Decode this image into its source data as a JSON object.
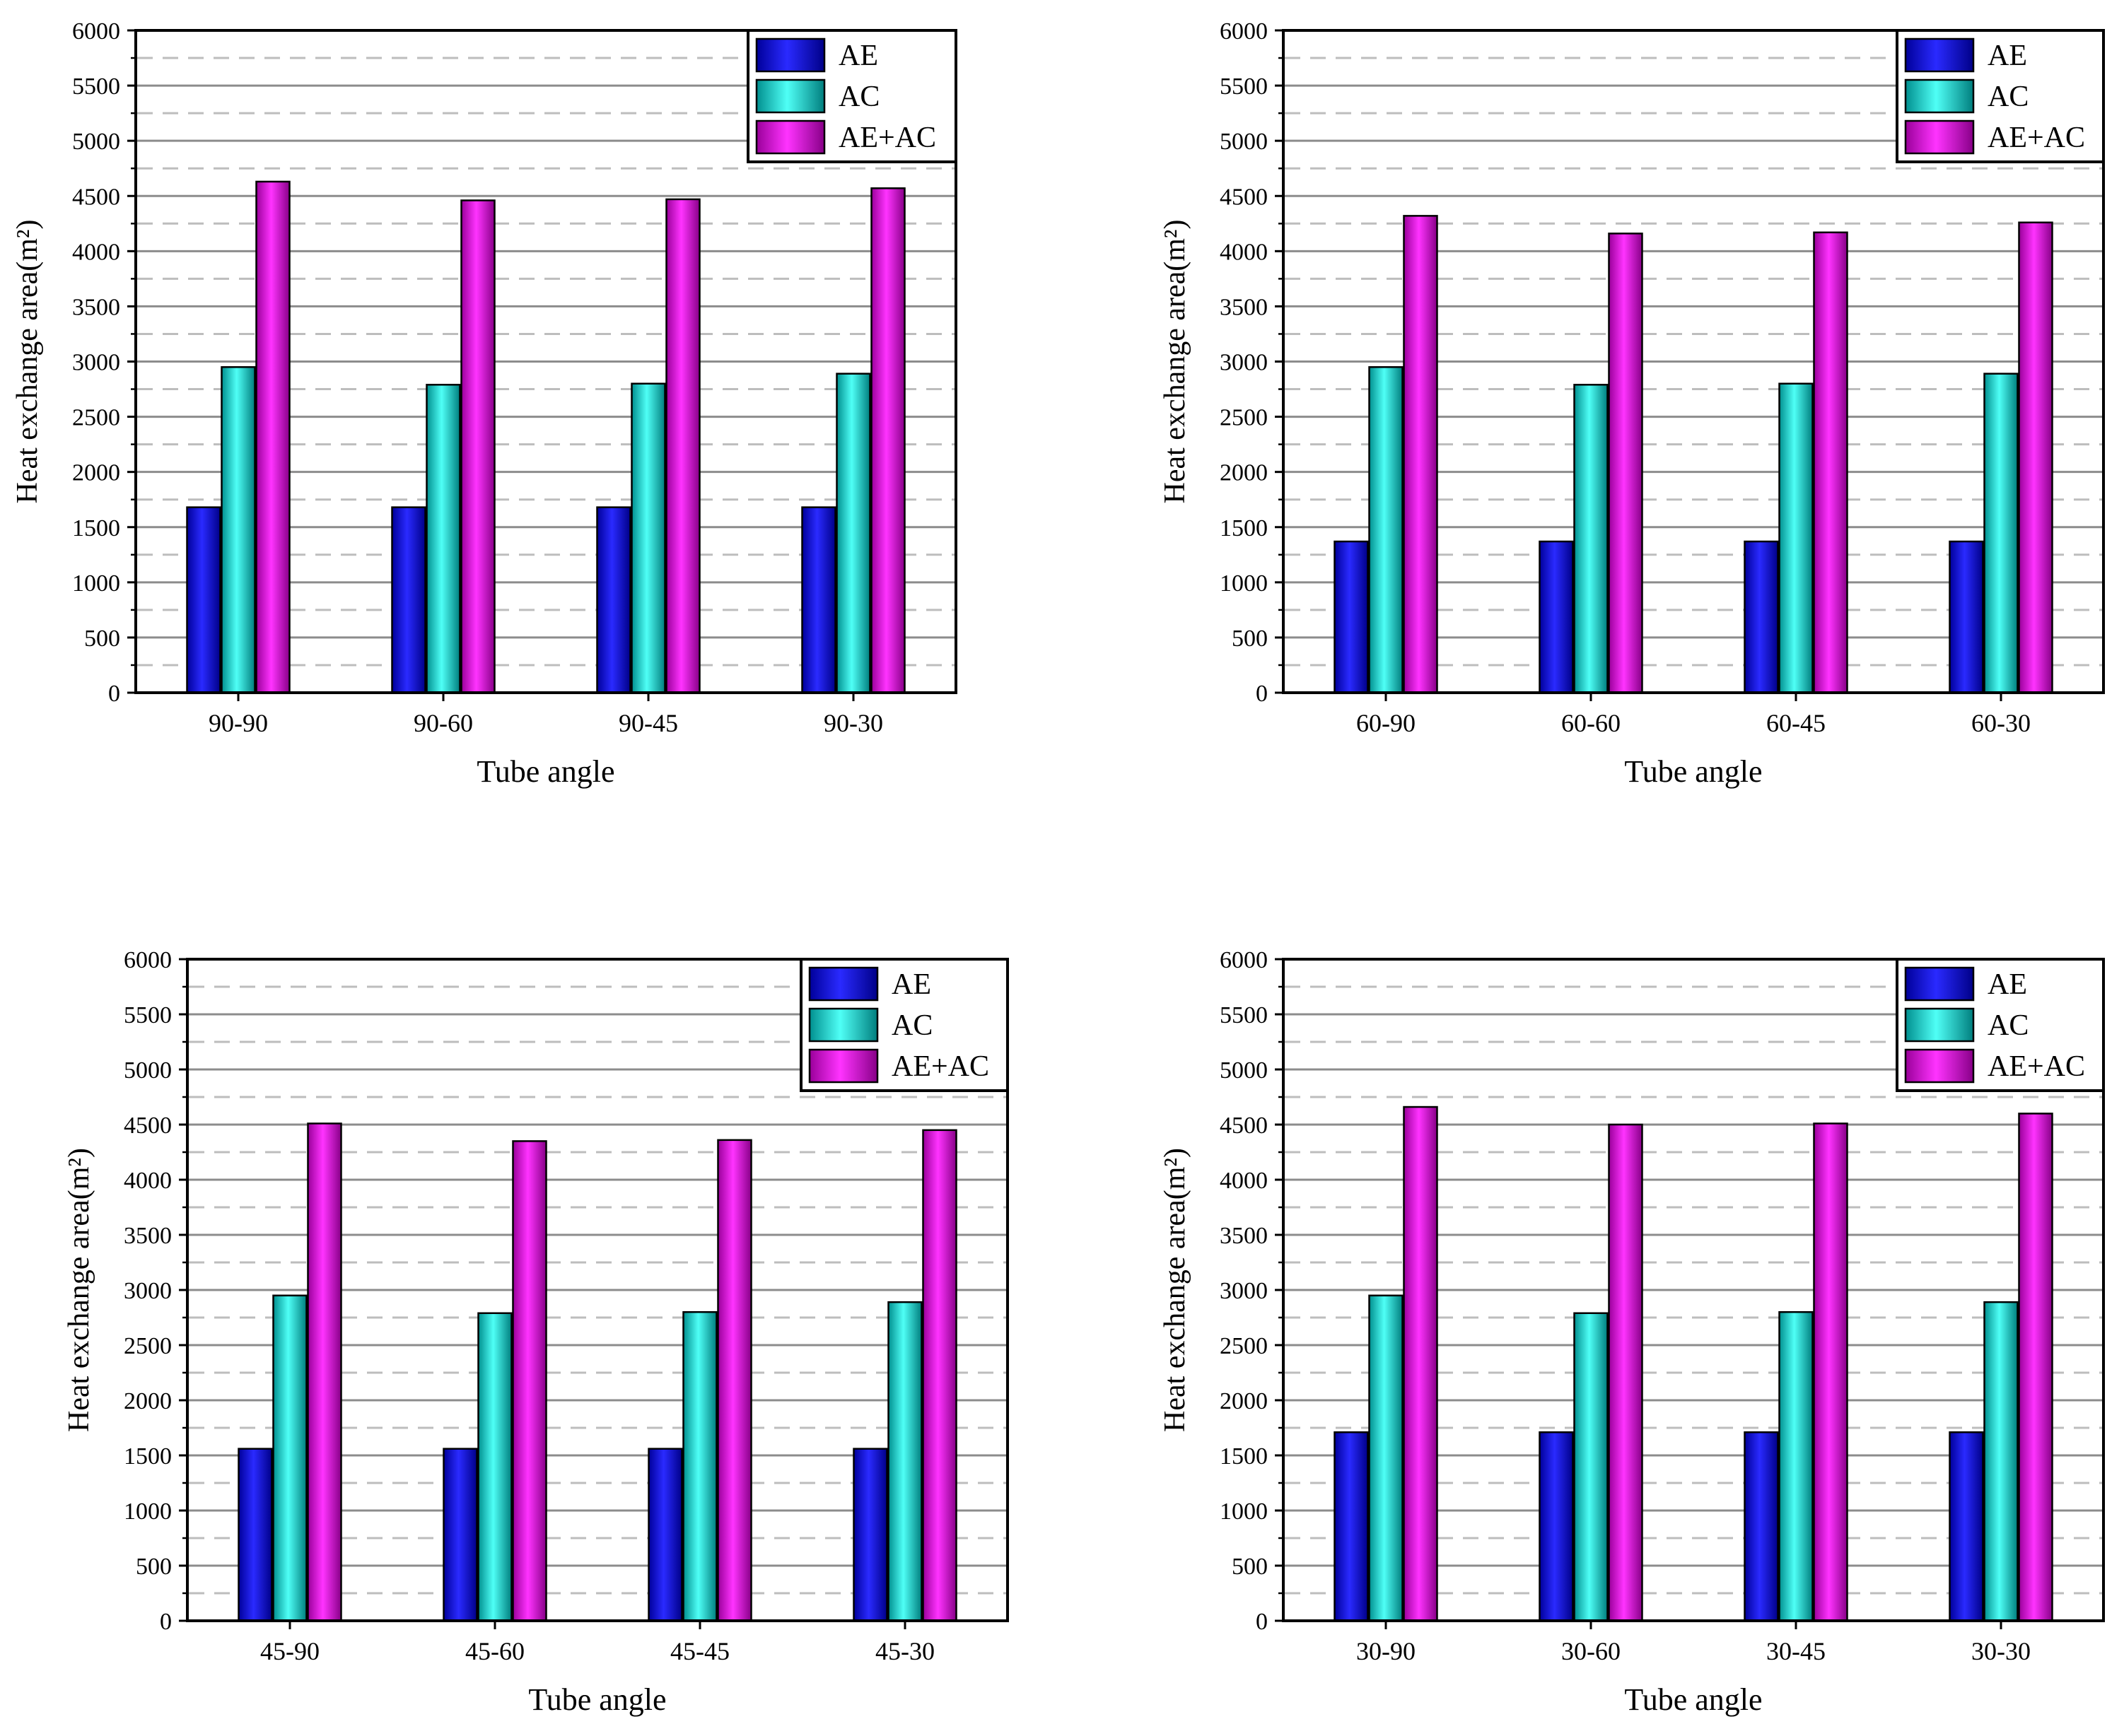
{
  "chart_data": [
    {
      "type": "bar",
      "categories": [
        "90-90",
        "90-60",
        "90-45",
        "90-30"
      ],
      "series": [
        {
          "name": "AE",
          "values": [
            1680,
            1680,
            1680,
            1680
          ]
        },
        {
          "name": "AC",
          "values": [
            2950,
            2790,
            2800,
            2890
          ]
        },
        {
          "name": "AE+AC",
          "values": [
            4630,
            4460,
            4470,
            4570
          ]
        }
      ],
      "title": "",
      "xlabel": "Tube angle",
      "ylabel": "Heat exchange area(m²)",
      "ylim": [
        0,
        6000
      ],
      "yticks": [
        "0",
        "500",
        "1000",
        "1500",
        "2000",
        "2500",
        "3000",
        "3500",
        "4000",
        "4500",
        "5000",
        "5500",
        "6000"
      ],
      "legend": "top-right",
      "grid": true
    },
    {
      "type": "bar",
      "categories": [
        "60-90",
        "60-60",
        "60-45",
        "60-30"
      ],
      "series": [
        {
          "name": "AE",
          "values": [
            1370,
            1370,
            1370,
            1370
          ]
        },
        {
          "name": "AC",
          "values": [
            2950,
            2790,
            2800,
            2890
          ]
        },
        {
          "name": "AE+AC",
          "values": [
            4320,
            4160,
            4170,
            4260
          ]
        }
      ],
      "title": "",
      "xlabel": "Tube angle",
      "ylabel": "Heat exchange area(m²)",
      "ylim": [
        0,
        6000
      ],
      "yticks": [
        "0",
        "500",
        "1000",
        "1500",
        "2000",
        "2500",
        "3000",
        "3500",
        "4000",
        "4500",
        "5000",
        "5500",
        "6000"
      ],
      "legend": "top-right",
      "grid": true
    },
    {
      "type": "bar",
      "categories": [
        "45-90",
        "45-60",
        "45-45",
        "45-30"
      ],
      "series": [
        {
          "name": "AE",
          "values": [
            1560,
            1560,
            1560,
            1560
          ]
        },
        {
          "name": "AC",
          "values": [
            2950,
            2790,
            2800,
            2890
          ]
        },
        {
          "name": "AE+AC",
          "values": [
            4510,
            4350,
            4360,
            4450
          ]
        }
      ],
      "title": "",
      "xlabel": "Tube angle",
      "ylabel": "Heat exchange area(m²)",
      "ylim": [
        0,
        6000
      ],
      "yticks": [
        "0",
        "500",
        "1000",
        "1500",
        "2000",
        "2500",
        "3000",
        "3500",
        "4000",
        "4500",
        "5000",
        "5500",
        "6000"
      ],
      "legend": "top-right",
      "grid": true
    },
    {
      "type": "bar",
      "categories": [
        "30-90",
        "30-60",
        "30-45",
        "30-30"
      ],
      "series": [
        {
          "name": "AE",
          "values": [
            1710,
            1710,
            1710,
            1710
          ]
        },
        {
          "name": "AC",
          "values": [
            2950,
            2790,
            2800,
            2890
          ]
        },
        {
          "name": "AE+AC",
          "values": [
            4660,
            4500,
            4510,
            4600
          ]
        }
      ],
      "title": "",
      "xlabel": "Tube angle",
      "ylabel": "Heat exchange area(m²)",
      "ylim": [
        0,
        6000
      ],
      "yticks": [
        "0",
        "500",
        "1000",
        "1500",
        "2000",
        "2500",
        "3000",
        "3500",
        "4000",
        "4500",
        "5000",
        "5500",
        "6000"
      ],
      "legend": "top-right",
      "grid": true
    }
  ],
  "series_colors": {
    "AE": "#1010e8",
    "AC": "#10e0d8",
    "AE+AC": "#f010f0"
  }
}
